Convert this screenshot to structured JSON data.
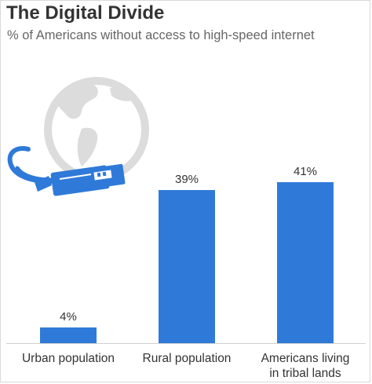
{
  "header": {
    "title": "The Digital Divide",
    "subtitle": "% of Americans without access to high-speed internet"
  },
  "illustration": {
    "icon": "globe-ethernet-cable-icon"
  },
  "colors": {
    "bar": "#2f7ad8",
    "globe": "#dcdcdc",
    "cable": "#2f7ad8",
    "axis": "#d0d0d0"
  },
  "chart_data": {
    "type": "bar",
    "title": "The Digital Divide",
    "subtitle": "% of Americans without access to high-speed internet",
    "categories": [
      "Urban population",
      "Rural population",
      "Americans living in tribal lands"
    ],
    "values": [
      4,
      39,
      41
    ],
    "value_labels": [
      "4%",
      "39%",
      "41%"
    ],
    "xlabel": "",
    "ylabel": "",
    "ylim": [
      0,
      41
    ],
    "grid": false,
    "legend": "none"
  }
}
